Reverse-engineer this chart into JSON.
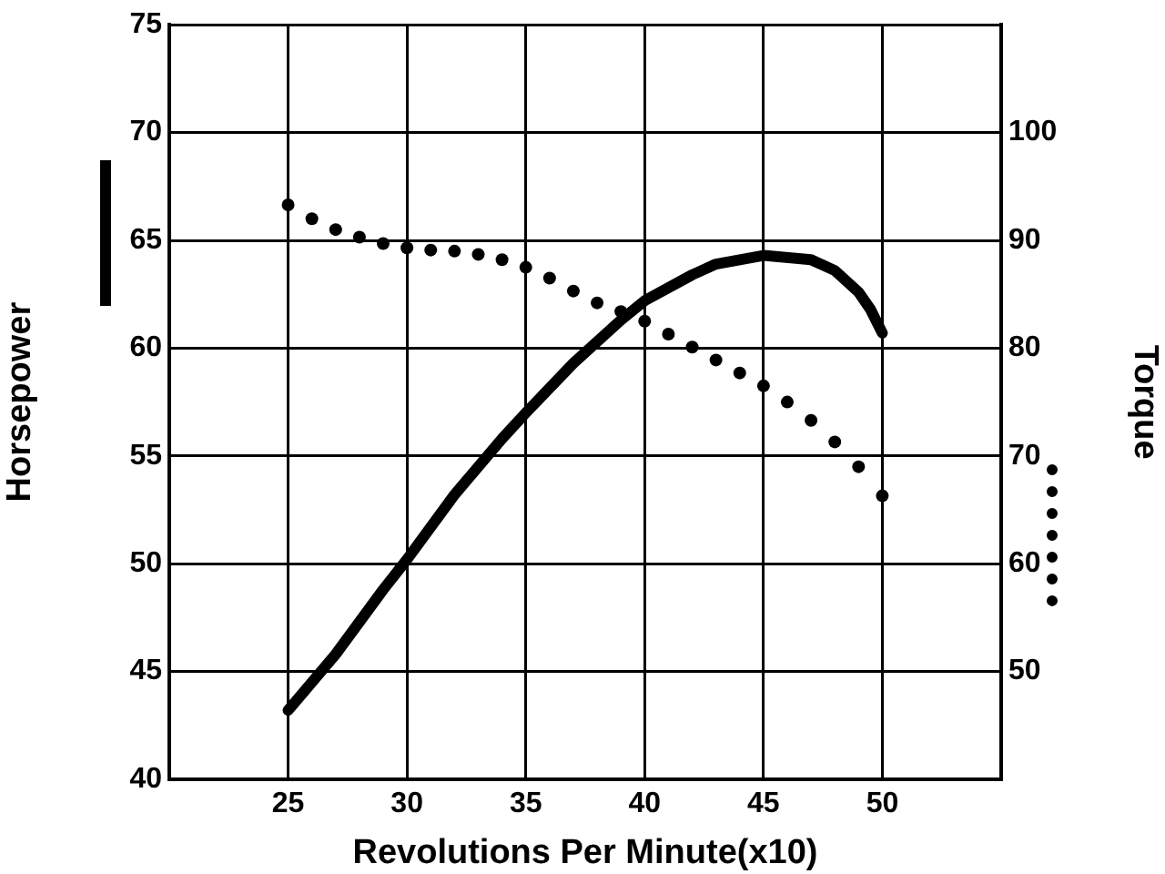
{
  "chart_data": {
    "type": "line",
    "xlabel": "Revolutions Per Minute(x10)",
    "ylabel": "Horsepower",
    "y2label": "Torque",
    "xlim": [
      20,
      55
    ],
    "xticks": [
      {
        "value": 20,
        "label": null
      },
      25,
      30,
      35,
      40,
      45,
      50,
      {
        "value": 55,
        "label": null
      }
    ],
    "ylim": [
      40,
      75
    ],
    "yticks": [
      40,
      45,
      50,
      55,
      60,
      65,
      70,
      75
    ],
    "y2lim": [
      40,
      110
    ],
    "y2ticks": [
      50,
      60,
      70,
      80,
      90,
      100
    ],
    "grid": true,
    "legend": false,
    "series": [
      {
        "type": "line",
        "color": "#000000",
        "line_style": "solid",
        "marker": "none",
        "x": [
          25,
          27,
          29,
          30,
          32,
          34,
          35,
          37,
          39,
          40,
          42,
          43,
          45,
          47,
          48,
          49,
          49.5,
          50
        ],
        "values": [
          43.2,
          45.8,
          48.8,
          50.2,
          53.2,
          55.8,
          57,
          59.3,
          61.3,
          62.2,
          63.4,
          63.9,
          64.3,
          64.1,
          63.6,
          62.6,
          61.8,
          60.7
        ]
      },
      {
        "type": "scatter",
        "axis": "y2",
        "color": "#000000",
        "marker": "circle",
        "x": [
          25,
          26,
          27,
          28,
          29,
          30,
          31,
          32,
          33,
          34,
          35,
          36,
          37,
          38,
          39,
          40,
          41,
          42,
          43,
          44,
          45,
          46,
          47,
          48,
          49,
          50
        ],
        "values": [
          93.3,
          92,
          91,
          90.3,
          89.7,
          89.3,
          89.1,
          89,
          88.7,
          88.2,
          87.5,
          86.5,
          85.3,
          84.2,
          83.4,
          82.5,
          81.3,
          80.1,
          78.9,
          77.7,
          76.5,
          75,
          73.3,
          71.3,
          69,
          66.3
        ]
      }
    ]
  }
}
